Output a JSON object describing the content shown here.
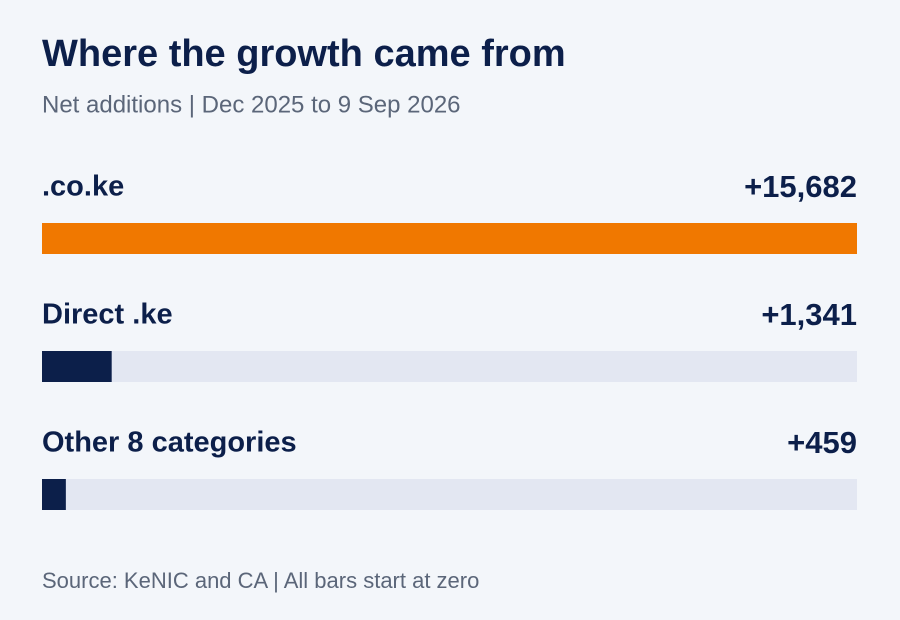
{
  "chart_data": {
    "type": "bar",
    "orientation": "horizontal",
    "title": "Where the growth came from",
    "subtitle": "Net additions | Dec 2025 to 9 Sep 2026",
    "categories": [
      ".co.ke",
      "Direct .ke",
      "Other 8 categories"
    ],
    "values": [
      15682,
      1341,
      459
    ],
    "value_labels": [
      "+15,682",
      "+1,341",
      "+459"
    ],
    "colors": [
      "#f07800",
      "#0c1f4a",
      "#0c1f4a"
    ],
    "xlim": [
      0,
      15682
    ],
    "note": "Source: KeNIC and CA | All bars start at zero"
  }
}
